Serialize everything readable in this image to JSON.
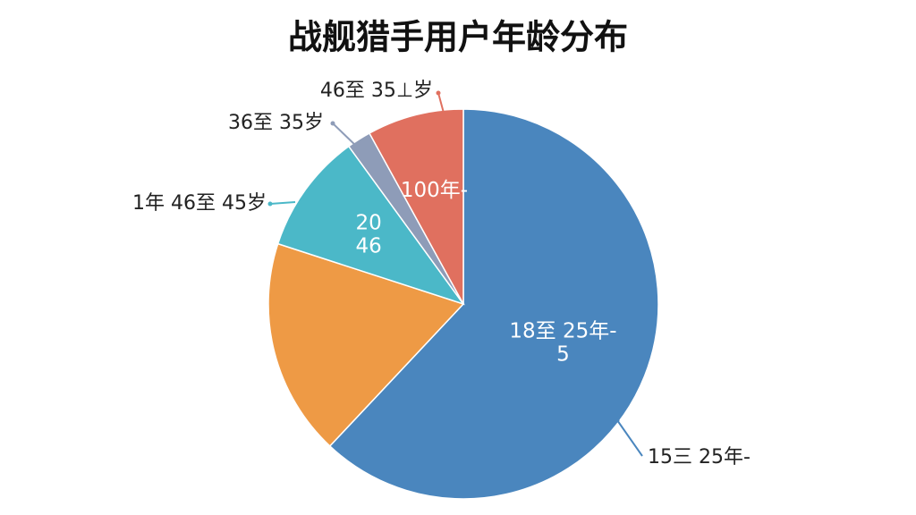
{
  "chart_data": {
    "type": "pie",
    "title": "战舰猎手用户年龄分布",
    "categories": [
      "15三 25年-",
      null,
      "1年 46至 45岁",
      "36至 35岁",
      "46至 35⊥岁"
    ],
    "inner_labels": [
      [
        "18至 25年-",
        "5"
      ],
      null,
      [
        "20",
        "46"
      ],
      null,
      [
        "100年-"
      ]
    ],
    "values": [
      62,
      18,
      10,
      2,
      8
    ],
    "colors": [
      "#4a86be",
      "#ee9a45",
      "#4bb8c8",
      "#8e9cb8",
      "#e0705f"
    ]
  }
}
